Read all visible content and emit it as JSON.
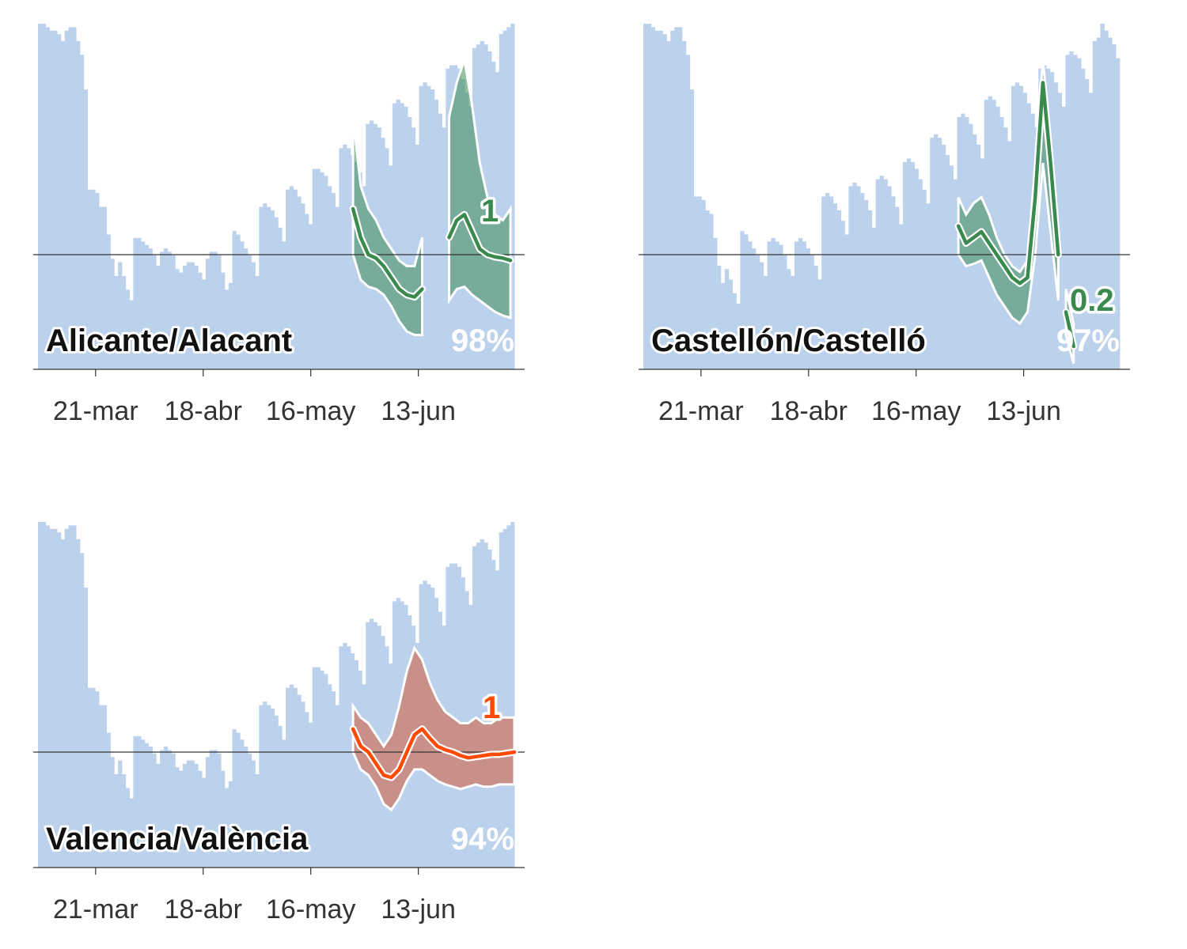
{
  "colors": {
    "bars": "#bcd2ec",
    "green_line": "#3a8a4e",
    "green_band": "#3d8c55",
    "orange_line": "#ff4a00",
    "orange_band": "#d35a3a"
  },
  "chart_data": [
    {
      "type": "bar+line",
      "title": "Alicante/Alacant",
      "probability_label": "98%",
      "r_label": "1",
      "color": "green",
      "x_ticks": [
        "21-mar",
        "18-abr",
        "16-may",
        "13-jun"
      ],
      "x_tick_days": [
        15,
        43,
        71,
        99
      ],
      "day_range": [
        0,
        124
      ],
      "reference_value": 1,
      "bars_relative_level": [
        1.0,
        1.0,
        0.99,
        0.98,
        0.98,
        0.97,
        0.95,
        0.98,
        0.99,
        0.99,
        0.95,
        0.91,
        0.81,
        0.52,
        0.52,
        0.51,
        0.47,
        0.47,
        0.39,
        0.32,
        0.27,
        0.31,
        0.27,
        0.23,
        0.2,
        0.38,
        0.38,
        0.37,
        0.36,
        0.35,
        0.33,
        0.3,
        0.34,
        0.35,
        0.34,
        0.33,
        0.29,
        0.28,
        0.3,
        0.31,
        0.31,
        0.3,
        0.28,
        0.26,
        0.32,
        0.34,
        0.34,
        0.33,
        0.28,
        0.23,
        0.25,
        0.4,
        0.39,
        0.37,
        0.35,
        0.33,
        0.31,
        0.27,
        0.47,
        0.48,
        0.47,
        0.46,
        0.44,
        0.41,
        0.37,
        0.52,
        0.53,
        0.52,
        0.5,
        0.48,
        0.45,
        0.42,
        0.58,
        0.58,
        0.57,
        0.56,
        0.53,
        0.51,
        0.47,
        0.64,
        0.65,
        0.64,
        0.62,
        0.6,
        0.57,
        0.53,
        0.71,
        0.72,
        0.71,
        0.7,
        0.67,
        0.64,
        0.59,
        0.77,
        0.78,
        0.77,
        0.76,
        0.73,
        0.7,
        0.65,
        0.82,
        0.83,
        0.82,
        0.81,
        0.78,
        0.74,
        0.7,
        0.87,
        0.88,
        0.88,
        0.87,
        0.84,
        0.8,
        0.76,
        0.93,
        0.94,
        0.95,
        0.94,
        0.92,
        0.89,
        0.86,
        0.97,
        0.98,
        0.99,
        1.0
      ],
      "series": [
        {
          "name": "",
          "x": [
            82,
            84,
            86,
            88,
            90,
            92,
            94,
            96,
            98,
            100
          ],
          "y": [
            1.4,
            1.15,
            1.0,
            0.97,
            0.9,
            0.8,
            0.7,
            0.65,
            0.63,
            0.7
          ],
          "lower": [
            1.0,
            0.78,
            0.72,
            0.7,
            0.65,
            0.55,
            0.42,
            0.33,
            0.3,
            0.3
          ],
          "upper": [
            2.2,
            1.6,
            1.4,
            1.3,
            1.15,
            1.05,
            0.95,
            0.9,
            0.9,
            1.15
          ]
        },
        {
          "name": "",
          "x": [
            107,
            109,
            111,
            113,
            115,
            117,
            119,
            121,
            123
          ],
          "y": [
            1.15,
            1.3,
            1.35,
            1.2,
            1.05,
            1.0,
            0.98,
            0.97,
            0.95
          ],
          "lower": [
            0.6,
            0.7,
            0.72,
            0.65,
            0.6,
            0.55,
            0.5,
            0.47,
            0.45
          ],
          "upper": [
            2.2,
            2.5,
            2.7,
            2.3,
            1.8,
            1.5,
            1.35,
            1.3,
            1.4
          ]
        }
      ]
    },
    {
      "type": "bar+line",
      "title": "Castellón/Castelló",
      "probability_label": "97%",
      "r_label": "0.2",
      "color": "green",
      "x_ticks": [
        "21-mar",
        "18-abr",
        "16-may",
        "13-jun"
      ],
      "x_tick_days": [
        15,
        43,
        71,
        99
      ],
      "day_range": [
        0,
        124
      ],
      "reference_value": 1,
      "bars_relative_level": [
        1.0,
        1.0,
        0.99,
        0.98,
        0.98,
        0.97,
        0.95,
        0.98,
        0.99,
        0.99,
        0.95,
        0.91,
        0.81,
        0.5,
        0.5,
        0.49,
        0.46,
        0.45,
        0.38,
        0.3,
        0.25,
        0.29,
        0.26,
        0.22,
        0.19,
        0.4,
        0.39,
        0.37,
        0.35,
        0.33,
        0.31,
        0.27,
        0.37,
        0.38,
        0.37,
        0.36,
        0.33,
        0.29,
        0.27,
        0.37,
        0.38,
        0.37,
        0.35,
        0.33,
        0.3,
        0.26,
        0.5,
        0.51,
        0.5,
        0.48,
        0.46,
        0.43,
        0.39,
        0.53,
        0.54,
        0.53,
        0.51,
        0.49,
        0.46,
        0.41,
        0.55,
        0.56,
        0.55,
        0.53,
        0.5,
        0.47,
        0.42,
        0.6,
        0.61,
        0.6,
        0.58,
        0.55,
        0.52,
        0.48,
        0.67,
        0.68,
        0.67,
        0.65,
        0.62,
        0.59,
        0.55,
        0.73,
        0.74,
        0.73,
        0.71,
        0.68,
        0.65,
        0.61,
        0.78,
        0.79,
        0.78,
        0.76,
        0.73,
        0.7,
        0.66,
        0.82,
        0.83,
        0.82,
        0.8,
        0.77,
        0.74,
        0.7,
        0.87,
        0.88,
        0.87,
        0.86,
        0.83,
        0.8,
        0.76,
        0.91,
        0.92,
        0.91,
        0.9,
        0.87,
        0.84,
        0.8,
        0.95,
        0.96,
        1.0,
        0.98,
        0.96,
        0.94,
        0.9
      ],
      "series": [
        {
          "name": "",
          "x": [
            82,
            84,
            86,
            88,
            90,
            92,
            94,
            96,
            98,
            100,
            102,
            104,
            106,
            108
          ],
          "y": [
            1.25,
            1.1,
            1.15,
            1.2,
            1.1,
            1.0,
            0.9,
            0.8,
            0.75,
            0.8,
            1.5,
            2.5,
            1.8,
            1.0
          ],
          "lower": [
            1.0,
            0.9,
            0.92,
            0.95,
            0.8,
            0.65,
            0.55,
            0.45,
            0.4,
            0.5,
            1.0,
            1.8,
            1.2,
            0.6
          ],
          "upper": [
            1.5,
            1.35,
            1.45,
            1.5,
            1.35,
            1.15,
            1.0,
            0.9,
            0.85,
            0.95,
            1.8,
            2.7,
            2.0,
            1.2
          ]
        },
        {
          "name": "",
          "x": [
            110,
            112
          ],
          "y": [
            0.5,
            0.2
          ],
          "lower": [
            0.3,
            0.05
          ],
          "upper": [
            0.7,
            0.4
          ]
        }
      ]
    },
    {
      "type": "bar+line",
      "title": "Valencia/València",
      "probability_label": "94%",
      "r_label": "1",
      "color": "orange",
      "x_ticks": [
        "21-mar",
        "18-abr",
        "16-may",
        "13-jun"
      ],
      "x_tick_days": [
        15,
        43,
        71,
        99
      ],
      "day_range": [
        0,
        124
      ],
      "reference_value": 1,
      "bars_relative_level": [
        1.0,
        1.0,
        0.99,
        0.98,
        0.98,
        0.97,
        0.95,
        0.98,
        0.99,
        0.99,
        0.95,
        0.91,
        0.81,
        0.52,
        0.52,
        0.51,
        0.47,
        0.47,
        0.39,
        0.32,
        0.27,
        0.31,
        0.27,
        0.23,
        0.2,
        0.38,
        0.38,
        0.37,
        0.36,
        0.35,
        0.33,
        0.3,
        0.34,
        0.35,
        0.34,
        0.33,
        0.29,
        0.28,
        0.3,
        0.31,
        0.31,
        0.3,
        0.28,
        0.26,
        0.32,
        0.34,
        0.34,
        0.33,
        0.28,
        0.23,
        0.25,
        0.4,
        0.39,
        0.37,
        0.35,
        0.33,
        0.31,
        0.27,
        0.47,
        0.48,
        0.47,
        0.46,
        0.44,
        0.41,
        0.37,
        0.52,
        0.53,
        0.52,
        0.5,
        0.48,
        0.45,
        0.42,
        0.58,
        0.58,
        0.57,
        0.56,
        0.53,
        0.51,
        0.47,
        0.64,
        0.65,
        0.64,
        0.62,
        0.6,
        0.57,
        0.53,
        0.71,
        0.72,
        0.71,
        0.7,
        0.67,
        0.64,
        0.59,
        0.77,
        0.78,
        0.77,
        0.76,
        0.73,
        0.7,
        0.65,
        0.82,
        0.83,
        0.82,
        0.81,
        0.78,
        0.74,
        0.7,
        0.87,
        0.88,
        0.88,
        0.87,
        0.84,
        0.8,
        0.76,
        0.93,
        0.94,
        0.95,
        0.94,
        0.92,
        0.89,
        0.86,
        0.97,
        0.98,
        0.99,
        1.0
      ],
      "series": [
        {
          "name": "",
          "x": [
            82,
            84,
            86,
            88,
            90,
            92,
            94,
            96,
            98,
            100,
            102,
            104,
            106,
            108,
            110,
            112,
            114,
            116,
            118,
            120,
            122,
            124
          ],
          "y": [
            1.2,
            1.05,
            1.0,
            0.9,
            0.8,
            0.78,
            0.85,
            1.0,
            1.15,
            1.2,
            1.12,
            1.05,
            1.02,
            1.0,
            0.97,
            0.95,
            0.96,
            0.97,
            0.98,
            0.98,
            0.99,
            1.0
          ],
          "lower": [
            1.0,
            0.85,
            0.8,
            0.7,
            0.55,
            0.5,
            0.6,
            0.75,
            0.85,
            0.85,
            0.8,
            0.75,
            0.72,
            0.7,
            0.68,
            0.7,
            0.72,
            0.7,
            0.7,
            0.72,
            0.72,
            0.72
          ],
          "upper": [
            1.4,
            1.3,
            1.25,
            1.15,
            1.05,
            1.15,
            1.4,
            1.7,
            1.9,
            1.8,
            1.6,
            1.45,
            1.35,
            1.3,
            1.25,
            1.25,
            1.3,
            1.25,
            1.25,
            1.3,
            1.3,
            1.3
          ]
        }
      ]
    }
  ]
}
